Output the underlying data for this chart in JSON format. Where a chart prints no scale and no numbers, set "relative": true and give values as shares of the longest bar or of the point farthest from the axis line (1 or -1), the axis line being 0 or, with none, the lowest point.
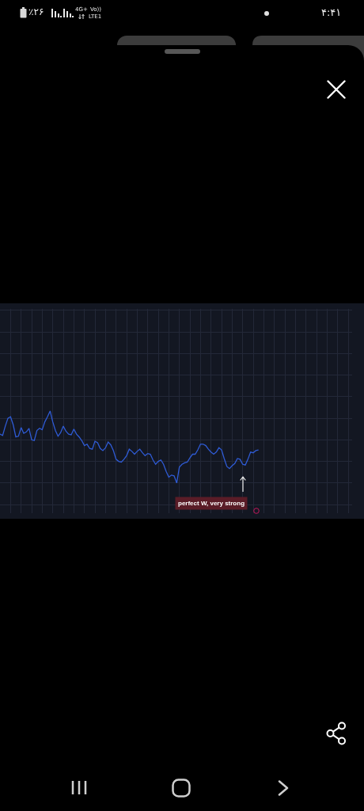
{
  "chart_data": {
    "type": "line",
    "relative": true,
    "grid": true,
    "categories": [
      null,
      null,
      null,
      null,
      null,
      null,
      null,
      null,
      null,
      null,
      null,
      null,
      null,
      null,
      null,
      null,
      null,
      null,
      null,
      null,
      null,
      null,
      null,
      null,
      null,
      null,
      null,
      null,
      null,
      null,
      null,
      null,
      null,
      null,
      null,
      null,
      null,
      null,
      null,
      null,
      null,
      null,
      null,
      null,
      null,
      null,
      null,
      null,
      null,
      null,
      null,
      null,
      null,
      null,
      null,
      null,
      null,
      null,
      null,
      null,
      null,
      null,
      null,
      null,
      null,
      null,
      null,
      null,
      null,
      null,
      null,
      null,
      null,
      null,
      null,
      null,
      null,
      null,
      null,
      null,
      null,
      null,
      null,
      null,
      null,
      null,
      null,
      null,
      null,
      null,
      null,
      null,
      null,
      null,
      null,
      null,
      null,
      null,
      null,
      null,
      null,
      null,
      null,
      null,
      null,
      null,
      null,
      null,
      null,
      null,
      null,
      null,
      null,
      null,
      null,
      null,
      null,
      null,
      null,
      null,
      null,
      null,
      null,
      null,
      null,
      null,
      null,
      null,
      null,
      null,
      null,
      null,
      null,
      null
    ],
    "color": "#2f5bd5",
    "values": [
      0.68,
      0.66,
      0.79,
      0.9,
      0.92,
      0.81,
      0.64,
      0.65,
      0.77,
      0.69,
      0.71,
      0.76,
      0.6,
      0.59,
      0.73,
      0.76,
      0.74,
      0.85,
      0.92,
      1,
      0.85,
      0.73,
      0.65,
      0.7,
      0.79,
      0.72,
      0.68,
      0.67,
      0.75,
      0.68,
      0.64,
      0.59,
      0.52,
      0.54,
      0.48,
      0.47,
      0.58,
      0.56,
      0.48,
      0.45,
      0.49,
      0.57,
      0.53,
      0.45,
      0.33,
      0.3,
      0.29,
      0.33,
      0.38,
      0.47,
      0.44,
      0.4,
      0.44,
      0.47,
      0.42,
      0.38,
      0.41,
      0.4,
      0.32,
      0.26,
      0.3,
      0.32,
      0.26,
      0.16,
      0.08,
      0.11,
      0.1,
      0,
      0.22,
      0.26,
      0.28,
      0.29,
      0.35,
      0.4,
      0.4,
      0.46,
      0.54,
      0.54,
      0.52,
      0.47,
      0.43,
      0.4,
      0.43,
      0.49,
      0.46,
      0.34,
      0.23,
      0.2,
      0.24,
      0.27,
      0.34,
      0.33,
      0.26,
      0.25,
      0.33,
      0.43,
      0.42,
      0.45,
      0.46,
      null,
      null,
      null,
      null,
      null,
      null,
      null,
      null,
      null,
      null,
      null,
      null,
      null,
      null,
      null,
      null,
      null,
      null,
      null,
      null,
      null,
      null,
      null,
      null,
      null,
      null,
      null,
      null,
      null,
      null,
      null,
      null,
      null,
      null,
      null
    ],
    "annotations": [
      "perfect W, very strong",
      "٪۲۶",
      "4G+",
      "Vo))",
      "LTE1",
      "۴:۴۱"
    ]
  }
}
